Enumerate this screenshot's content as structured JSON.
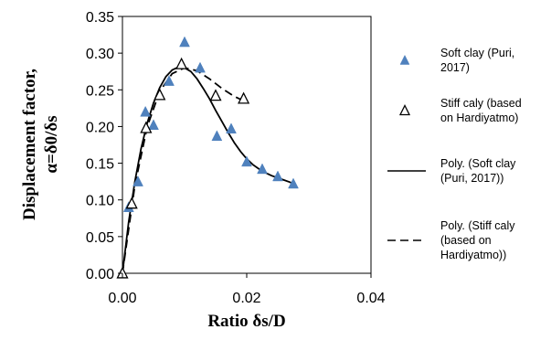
{
  "chart_data": {
    "type": "scatter",
    "xlabel": "Ratio δs/D",
    "ylabel_line1": "Displacement factor,",
    "ylabel_line2": "α=δ0/δs",
    "xlim": [
      0,
      0.04
    ],
    "ylim": [
      0,
      0.35
    ],
    "xticks": [
      0,
      0.02,
      0.04
    ],
    "xtick_labels": [
      "0.00",
      "0.02",
      "0.04"
    ],
    "yticks": [
      0,
      0.05,
      0.1,
      0.15,
      0.2,
      0.25,
      0.3,
      0.35
    ],
    "ytick_labels": [
      "0.00",
      "0.05",
      "0.10",
      "0.15",
      "0.20",
      "0.25",
      "0.30",
      "0.35"
    ],
    "grid": false,
    "legend_position": "right",
    "series": [
      {
        "name": "Soft clay (Puri, 2017)",
        "marker": "filled-triangle",
        "color": "#4f81bd",
        "x": [
          0.0,
          0.001,
          0.0025,
          0.0037,
          0.005,
          0.0075,
          0.01,
          0.0125,
          0.0152,
          0.0175,
          0.02,
          0.0225,
          0.025,
          0.0275
        ],
        "y": [
          0.0,
          0.09,
          0.125,
          0.22,
          0.202,
          0.262,
          0.315,
          0.28,
          0.187,
          0.197,
          0.152,
          0.142,
          0.132,
          0.122
        ]
      },
      {
        "name": "Stiff caly (based on Hardiyatmo)",
        "marker": "open-triangle",
        "color": "#000000",
        "x": [
          0.0,
          0.0015,
          0.0038,
          0.006,
          0.0095,
          0.015,
          0.0195
        ],
        "y": [
          0.0,
          0.095,
          0.198,
          0.243,
          0.285,
          0.242,
          0.238
        ]
      },
      {
        "name": "Poly. (Soft clay (Puri, 2017))",
        "line_style": "solid",
        "color": "#000000",
        "x": [
          0.0,
          0.001,
          0.002,
          0.003,
          0.004,
          0.005,
          0.006,
          0.007,
          0.008,
          0.009,
          0.01,
          0.011,
          0.012,
          0.013,
          0.014,
          0.015,
          0.016,
          0.017,
          0.018,
          0.019,
          0.02,
          0.021,
          0.022,
          0.023,
          0.024,
          0.025,
          0.026,
          0.027,
          0.0275
        ],
        "y": [
          0.0,
          0.07,
          0.125,
          0.17,
          0.205,
          0.232,
          0.253,
          0.268,
          0.277,
          0.281,
          0.28,
          0.275,
          0.265,
          0.252,
          0.238,
          0.222,
          0.207,
          0.192,
          0.178,
          0.166,
          0.156,
          0.148,
          0.142,
          0.137,
          0.133,
          0.13,
          0.127,
          0.124,
          0.122
        ]
      },
      {
        "name": "Poly. (Stiff caly (based on Hardiyatmo))",
        "line_style": "dashed",
        "color": "#000000",
        "x": [
          0.0,
          0.002,
          0.004,
          0.006,
          0.008,
          0.01,
          0.012,
          0.014,
          0.016,
          0.018,
          0.0195
        ],
        "y": [
          0.0,
          0.12,
          0.2,
          0.248,
          0.272,
          0.28,
          0.276,
          0.265,
          0.252,
          0.241,
          0.235
        ]
      }
    ],
    "legend_lines": [
      [
        "Soft clay (Puri,",
        "2017)"
      ],
      [
        "Stiff caly (based",
        "on Hardiyatmo)"
      ],
      [
        "Poly. (Soft clay",
        "(Puri, 2017))"
      ],
      [
        "Poly. (Stiff caly",
        "(based on",
        "Hardiyatmo))"
      ]
    ]
  }
}
